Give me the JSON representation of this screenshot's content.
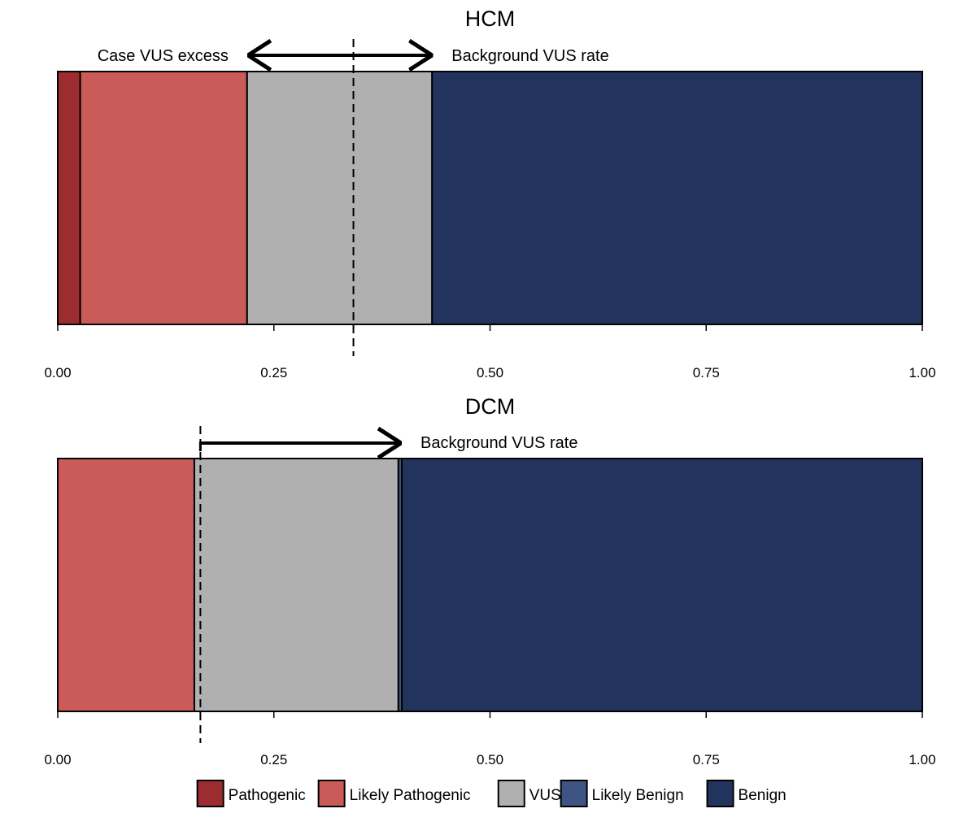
{
  "chart_data": [
    {
      "type": "bar",
      "orientation": "horizontal-stacked",
      "title": "HCM",
      "xlabel": "",
      "ylabel": "",
      "xlim": [
        0,
        1
      ],
      "x_ticks": [
        "0.00",
        "0.25",
        "0.50",
        "0.75",
        "1.00"
      ],
      "segments": [
        {
          "name": "Pathogenic",
          "value": 0.026
        },
        {
          "name": "Likely Pathogenic",
          "value": 0.193
        },
        {
          "name": "VUS",
          "value": 0.214
        },
        {
          "name": "Likely Benign",
          "value": 0.0
        },
        {
          "name": "Benign",
          "value": 0.567
        }
      ],
      "reference_line": 0.342,
      "annotations": [
        {
          "text": "Case VUS excess",
          "side": "left"
        },
        {
          "text": "Background VUS rate",
          "side": "right"
        }
      ],
      "arrow": {
        "from": 0.22,
        "to": 0.433,
        "heads": "both"
      }
    },
    {
      "type": "bar",
      "orientation": "horizontal-stacked",
      "title": "DCM",
      "xlabel": "",
      "ylabel": "",
      "xlim": [
        0,
        1
      ],
      "x_ticks": [
        "0.00",
        "0.25",
        "0.50",
        "0.75",
        "1.00"
      ],
      "segments": [
        {
          "name": "Pathogenic",
          "value": 0.0
        },
        {
          "name": "Likely Pathogenic",
          "value": 0.158
        },
        {
          "name": "VUS",
          "value": 0.236
        },
        {
          "name": "Likely Benign",
          "value": 0.004
        },
        {
          "name": "Benign",
          "value": 0.602
        }
      ],
      "reference_line": 0.165,
      "annotations": [
        {
          "text": "Background VUS rate",
          "side": "right"
        }
      ],
      "arrow": {
        "from": 0.165,
        "to": 0.397,
        "heads": "end"
      }
    }
  ],
  "legend": {
    "placement": "bottom",
    "items": [
      {
        "label": "Pathogenic",
        "color": "#9b2d30"
      },
      {
        "label": "Likely Pathogenic",
        "color": "#cb5b59"
      },
      {
        "label": "VUS",
        "color": "#b0b0b0"
      },
      {
        "label": "Likely Benign",
        "color": "#3e5482"
      },
      {
        "label": "Benign",
        "color": "#22345e"
      }
    ]
  }
}
